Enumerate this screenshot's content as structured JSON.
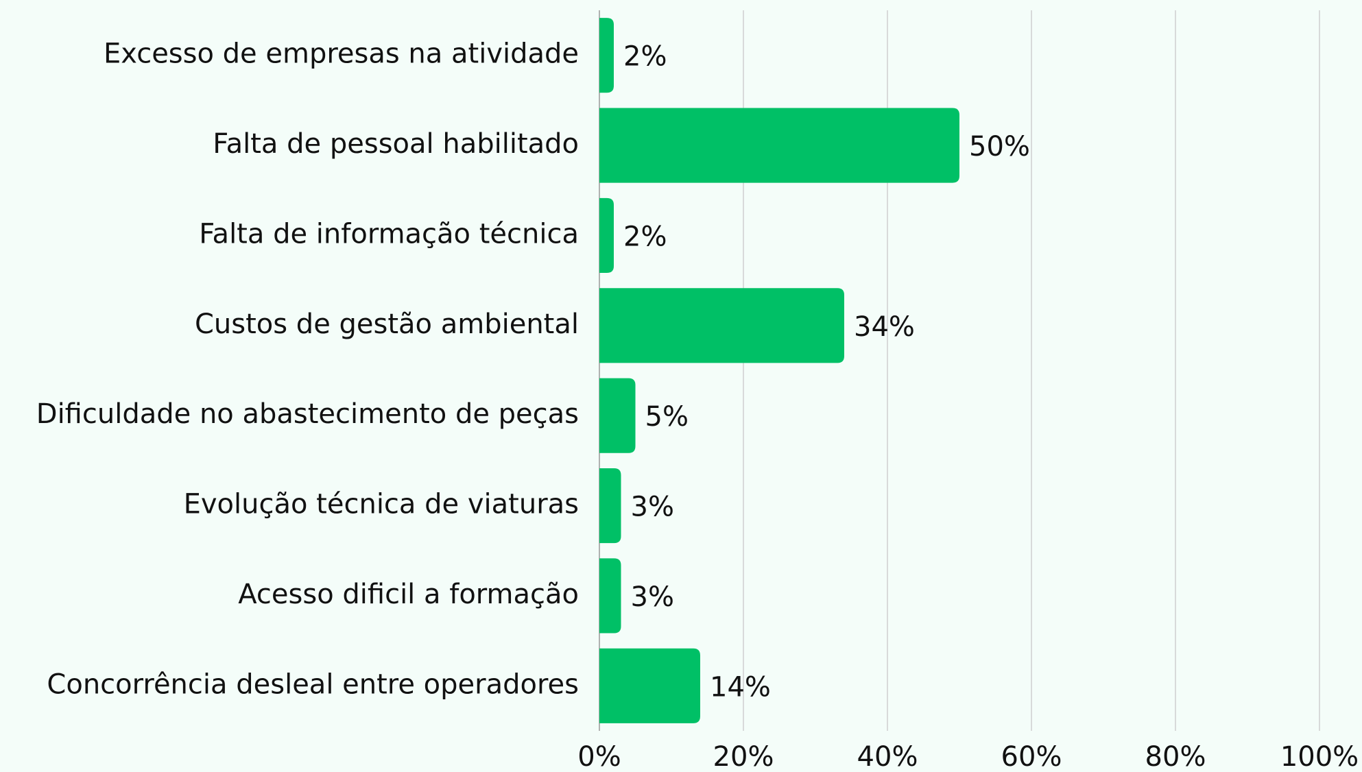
{
  "chart_data": {
    "type": "bar",
    "orientation": "horizontal",
    "categories": [
      "Excesso de empresas na atividade",
      "Falta de pessoal habilitado",
      "Falta de informação técnica",
      "Custos de gestão ambiental",
      "Dificuldade no abastecimento de peças",
      "Evolução técnica de viaturas",
      "Acesso dificil a formação",
      "Concorrência desleal entre operadores"
    ],
    "values": [
      2,
      50,
      2,
      34,
      5,
      3,
      3,
      14
    ],
    "value_labels": [
      "2%",
      "50%",
      "2%",
      "34%",
      "5%",
      "3%",
      "3%",
      "14%"
    ],
    "color": "#00c066",
    "xlim": [
      0,
      100
    ],
    "xticks": [
      {
        "value": 0,
        "label": "0%"
      },
      {
        "value": 20,
        "label": "20%"
      },
      {
        "value": 40,
        "label": "40%"
      },
      {
        "value": 60,
        "label": "60%"
      },
      {
        "value": 80,
        "label": "80%"
      },
      {
        "value": 100,
        "label": "100%"
      }
    ],
    "grid": true
  }
}
